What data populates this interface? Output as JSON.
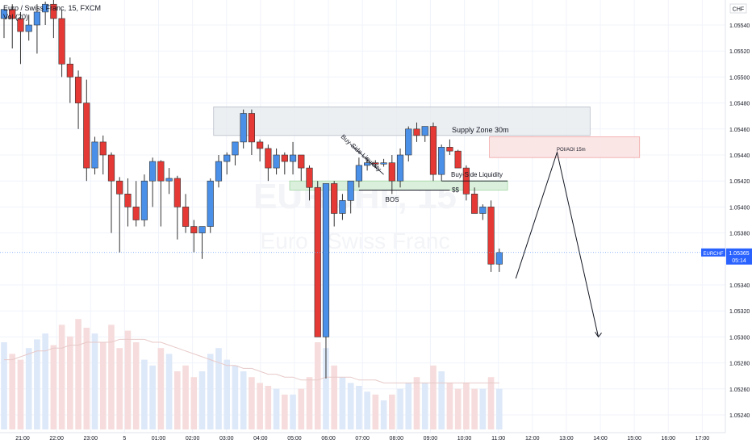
{
  "header": {
    "symbol_title": "Euro / Swiss Franc, 15, FXCM",
    "volume_label": "Vol (20)",
    "currency": "CHF",
    "watermark_ticker": "EURCHF, 15",
    "watermark_name": "Euro / Swiss Franc"
  },
  "price_axis": {
    "ticks": [
      "1.05540",
      "1.05520",
      "1.05500",
      "1.05480",
      "1.05460",
      "1.05440",
      "1.05420",
      "1.05400",
      "1.05380",
      "1.05340",
      "1.05320",
      "1.05300",
      "1.05280",
      "1.05260",
      "1.05240"
    ],
    "ticker_tag": "EURCHF",
    "last_price": "1.05365",
    "countdown": "05:14"
  },
  "time_axis": {
    "ticks": [
      "21:00",
      "22:00",
      "23:00",
      "5",
      "01:00",
      "02:00",
      "03:00",
      "04:00",
      "05:00",
      "06:00",
      "07:00",
      "08:00",
      "09:00",
      "10:00",
      "11:00",
      "12:00",
      "13:00",
      "14:00",
      "15:00",
      "16:00",
      "17:00"
    ]
  },
  "annotations": {
    "supply_zone": "Supply Zone 30m",
    "poi": "POI/AOI 15m",
    "buy_side_liquidity": "Buy-Side Liquidity",
    "buy_side_liquidity_diag": "Buy-Side Liquidity",
    "bos": "BOS",
    "ss": "$$"
  },
  "colors": {
    "up": "#4a8fe8",
    "down": "#e53935",
    "supply_zone": "#c8cdd6",
    "poi_zone": "#f6c9c9",
    "liquidity_zone": "#b7e0b8",
    "grid": "#f0f3fa",
    "axis_text": "#131722",
    "last_price_tag": "#2962ff"
  },
  "chart_data": {
    "type": "candlestick",
    "title": "Euro / Swiss Franc, 15, FXCM",
    "interval": "15m",
    "y_range": [
      1.0523,
      1.0556
    ],
    "ohlc": [
      [
        1.05545,
        1.05552,
        1.0553,
        1.05552
      ],
      [
        1.05552,
        1.05556,
        1.05522,
        1.05545
      ],
      [
        1.05545,
        1.0555,
        1.0551,
        1.05535
      ],
      [
        1.05535,
        1.05548,
        1.05528,
        1.0554
      ],
      [
        1.0554,
        1.05556,
        1.05518,
        1.0555
      ],
      [
        1.0555,
        1.05558,
        1.0554,
        1.05556
      ],
      [
        1.05556,
        1.0556,
        1.0553,
        1.05545
      ],
      [
        1.05545,
        1.05552,
        1.055,
        1.0551
      ],
      [
        1.0551,
        1.05515,
        1.0548,
        1.055
      ],
      [
        1.055,
        1.05505,
        1.0546,
        1.0548
      ],
      [
        1.0548,
        1.05498,
        1.0542,
        1.0543
      ],
      [
        1.0543,
        1.05454,
        1.05425,
        1.0545
      ],
      [
        1.0545,
        1.05455,
        1.05425,
        1.0544
      ],
      [
        1.0544,
        1.05442,
        1.0538,
        1.0542
      ],
      [
        1.0542,
        1.05423,
        1.05365,
        1.0541
      ],
      [
        1.0541,
        1.05422,
        1.05385,
        1.054
      ],
      [
        1.054,
        1.0542,
        1.05385,
        1.0539
      ],
      [
        1.0539,
        1.05425,
        1.05385,
        1.0542
      ],
      [
        1.0542,
        1.05438,
        1.054,
        1.05435
      ],
      [
        1.05435,
        1.05436,
        1.05385,
        1.0542
      ],
      [
        1.0542,
        1.0543,
        1.0541,
        1.05422
      ],
      [
        1.05422,
        1.05424,
        1.05375,
        1.054
      ],
      [
        1.054,
        1.0541,
        1.0538,
        1.05385
      ],
      [
        1.05385,
        1.0539,
        1.05365,
        1.0538
      ],
      [
        1.0538,
        1.05385,
        1.0536,
        1.05385
      ],
      [
        1.05385,
        1.05422,
        1.0538,
        1.0542
      ],
      [
        1.0542,
        1.0544,
        1.05415,
        1.05435
      ],
      [
        1.05435,
        1.05442,
        1.05425,
        1.0544
      ],
      [
        1.0544,
        1.0545,
        1.05432,
        1.0545
      ],
      [
        1.0545,
        1.05475,
        1.05445,
        1.05472
      ],
      [
        1.05472,
        1.05475,
        1.0544,
        1.0545
      ],
      [
        1.0545,
        1.05452,
        1.05435,
        1.05445
      ],
      [
        1.05445,
        1.05448,
        1.0542,
        1.0543
      ],
      [
        1.0543,
        1.05445,
        1.05425,
        1.0544
      ],
      [
        1.0544,
        1.05442,
        1.05425,
        1.05435
      ],
      [
        1.05435,
        1.0545,
        1.05425,
        1.0544
      ],
      [
        1.0544,
        1.0544,
        1.0542,
        1.0543
      ],
      [
        1.0543,
        1.05432,
        1.05405,
        1.05415
      ],
      [
        1.05415,
        1.0542,
        1.053,
        1.053
      ],
      [
        1.053,
        1.05418,
        1.05268,
        1.05418
      ],
      [
        1.05418,
        1.0542,
        1.05385,
        1.05395
      ],
      [
        1.05395,
        1.0541,
        1.0539,
        1.05405
      ],
      [
        1.05405,
        1.0542,
        1.05395,
        1.0542
      ],
      [
        1.0542,
        1.05438,
        1.05415,
        1.05432
      ],
      [
        1.05432,
        1.05438,
        1.05428,
        1.05434
      ],
      [
        1.05434,
        1.05436,
        1.0543,
        1.05433
      ],
      [
        1.05433,
        1.05437,
        1.05431,
        1.05434
      ],
      [
        1.05434,
        1.0544,
        1.0541,
        1.0542
      ],
      [
        1.0542,
        1.05445,
        1.05415,
        1.0544
      ],
      [
        1.0544,
        1.05462,
        1.05435,
        1.0546
      ],
      [
        1.0546,
        1.05465,
        1.0545,
        1.05455
      ],
      [
        1.05455,
        1.05462,
        1.0545,
        1.05462
      ],
      [
        1.05462,
        1.05465,
        1.0542,
        1.05425
      ],
      [
        1.05425,
        1.05448,
        1.0542,
        1.05446
      ],
      [
        1.05446,
        1.05452,
        1.0544,
        1.05443
      ],
      [
        1.05443,
        1.05444,
        1.0543,
        1.0543
      ],
      [
        1.0543,
        1.05432,
        1.05405,
        1.0541
      ],
      [
        1.0541,
        1.05415,
        1.05395,
        1.05395
      ],
      [
        1.05395,
        1.05402,
        1.0539,
        1.054
      ],
      [
        1.054,
        1.05405,
        1.0535,
        1.05356
      ],
      [
        1.05356,
        1.05368,
        1.0535,
        1.05365
      ]
    ],
    "volume": [
      30,
      26,
      24,
      28,
      31,
      33,
      29,
      36,
      32,
      38,
      35,
      33,
      30,
      36,
      28,
      34,
      30,
      24,
      22,
      28,
      26,
      20,
      22,
      18,
      20,
      26,
      28,
      24,
      22,
      20,
      18,
      16,
      15,
      14,
      12,
      12,
      14,
      18,
      30,
      28,
      22,
      18,
      16,
      15,
      13,
      12,
      10,
      12,
      14,
      16,
      18,
      16,
      22,
      20,
      16,
      14,
      16,
      14,
      14,
      18,
      14
    ],
    "volume_ma": [
      24,
      24,
      25,
      26,
      27,
      27,
      28,
      28,
      29,
      29,
      30,
      30,
      30,
      30,
      31,
      31,
      31,
      31,
      30,
      30,
      29,
      28,
      27,
      26,
      25,
      24,
      23,
      22,
      22,
      21,
      21,
      20,
      19,
      19,
      18,
      18,
      17,
      17,
      17,
      18,
      18,
      18,
      18,
      17,
      17,
      17,
      16,
      16,
      16,
      16,
      16,
      16,
      16,
      16,
      16,
      16,
      16,
      16,
      16,
      16,
      16
    ],
    "zones": [
      {
        "label": "Supply Zone 30m",
        "t_start": 25,
        "t_end": 71,
        "price_low": 1.05455,
        "price_high": 1.05477
      },
      {
        "label": "POI/AOI 15m",
        "t_start": 59,
        "t_end": 77,
        "price_low": 1.05438,
        "price_high": 1.05454
      },
      {
        "label": "Buy-Side Liquidity",
        "t_start": 35,
        "t_end": 61,
        "price_low": 1.05413,
        "price_high": 1.0542
      }
    ],
    "projection": [
      {
        "t": 62,
        "price": 1.05345
      },
      {
        "t": 67,
        "price": 1.05442
      },
      {
        "t": 72,
        "price": 1.053
      }
    ],
    "last_price": 1.05365
  }
}
